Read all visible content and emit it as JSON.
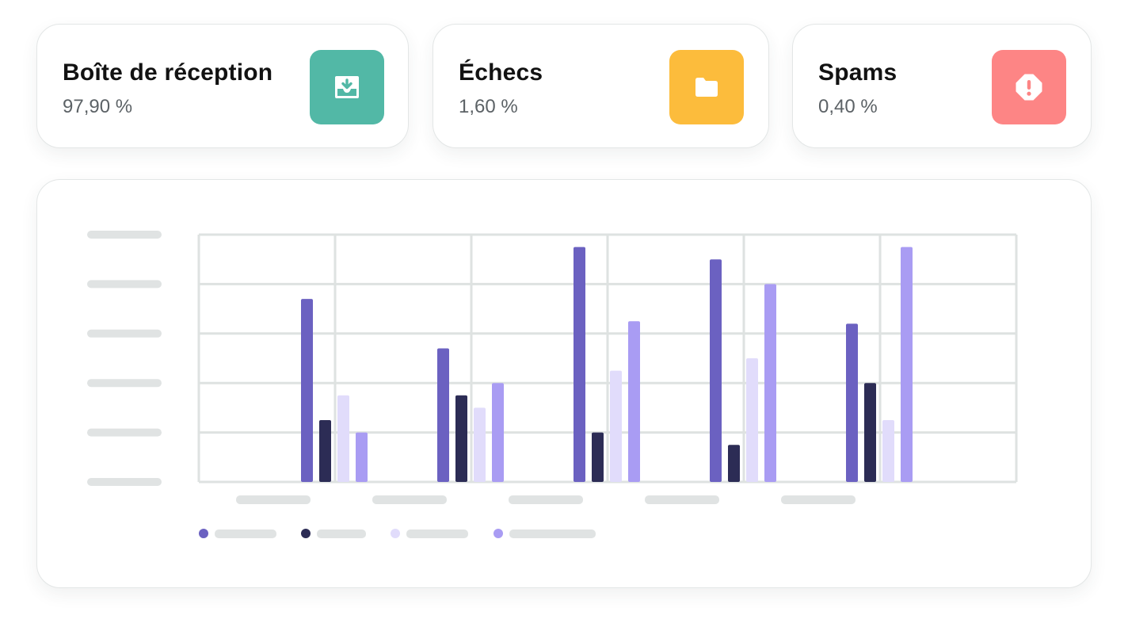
{
  "stats": [
    {
      "title": "Boîte de réception",
      "value": "97,90 %",
      "icon": "inbox-download-icon",
      "color": "#52b8a6"
    },
    {
      "title": "Échecs",
      "value": "1,60 %",
      "icon": "folder-icon",
      "color": "#fcbc3c"
    },
    {
      "title": "Spams",
      "value": "0,40 %",
      "icon": "alert-icon",
      "color": "#fd8585"
    }
  ],
  "colors": {
    "series": [
      "#6b61c1",
      "#2c2c55",
      "#e1dcfb",
      "#a99cf3"
    ],
    "grid": "#dee2e1",
    "placeholder": "#e0e3e3"
  },
  "chart_data": {
    "type": "bar",
    "categories": [
      "",
      "",
      "",
      "",
      ""
    ],
    "series": [
      {
        "values": [
          3.7,
          2.7,
          4.75,
          4.5,
          3.2
        ]
      },
      {
        "values": [
          1.25,
          1.75,
          1.0,
          0.75,
          2.0
        ]
      },
      {
        "values": [
          1.75,
          1.5,
          2.25,
          2.5,
          1.25
        ]
      },
      {
        "values": [
          1.0,
          2.0,
          3.25,
          4.0,
          4.75
        ]
      }
    ],
    "ylim": [
      0,
      5
    ],
    "grid": true,
    "legend": "bottom-left"
  }
}
